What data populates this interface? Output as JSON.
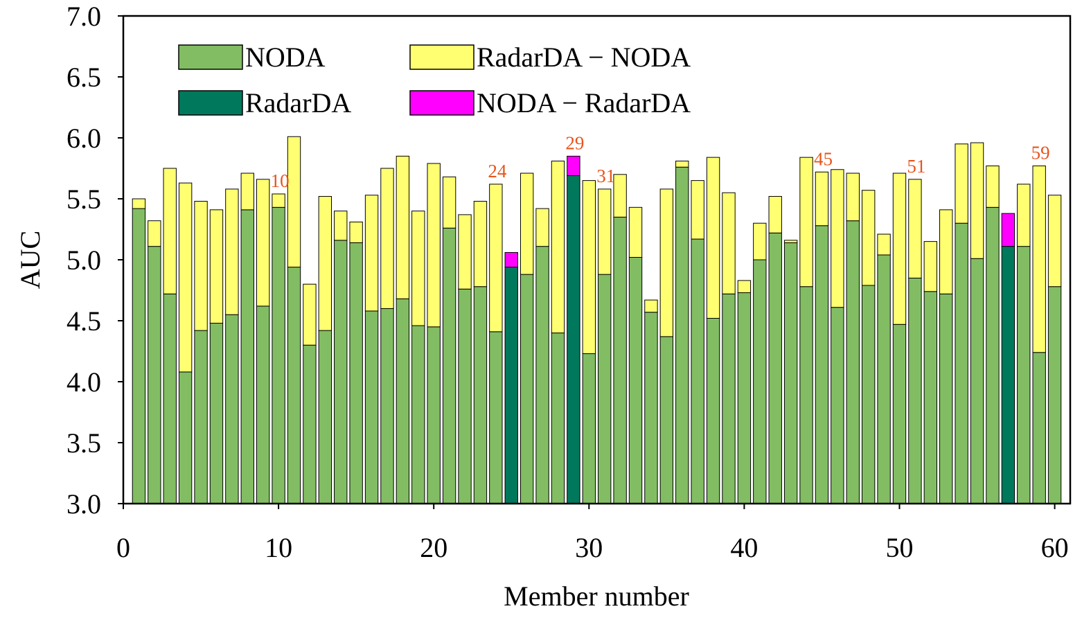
{
  "chart_data": {
    "type": "bar",
    "title": "",
    "xlabel": "Member number",
    "ylabel": "AUC",
    "xlim": [
      0,
      61
    ],
    "ylim": [
      3.0,
      7.0
    ],
    "x_ticks": [
      "0",
      "10",
      "20",
      "30",
      "40",
      "50",
      "60"
    ],
    "y_ticks": [
      "3.0",
      "3.5",
      "4.0",
      "4.5",
      "5.0",
      "5.5",
      "6.0",
      "6.5",
      "7.0"
    ],
    "grid": false,
    "legend_position": "top-left",
    "colors": {
      "noda": "#82bd63",
      "radarda": "#00785c",
      "radarda_minus_noda": "#ffff71",
      "noda_minus_radarda": "#ff00ff"
    },
    "legend": [
      {
        "key": "noda",
        "label": "NODA"
      },
      {
        "key": "radarda_minus_noda",
        "label": "RadarDA − NODA"
      },
      {
        "key": "radarda",
        "label": "RadarDA"
      },
      {
        "key": "noda_minus_radarda",
        "label": "NODA − RadarDA"
      }
    ],
    "members": [
      1,
      2,
      3,
      4,
      5,
      6,
      7,
      8,
      9,
      10,
      11,
      12,
      13,
      14,
      15,
      16,
      17,
      18,
      19,
      20,
      21,
      22,
      23,
      24,
      25,
      26,
      27,
      28,
      29,
      30,
      31,
      32,
      33,
      34,
      35,
      36,
      37,
      38,
      39,
      40,
      41,
      42,
      43,
      44,
      45,
      46,
      47,
      48,
      49,
      50,
      51,
      52,
      53,
      54,
      55,
      56,
      57,
      58,
      59,
      60
    ],
    "series": [
      {
        "name": "NODA",
        "values": [
          5.42,
          5.11,
          4.72,
          4.08,
          4.42,
          4.48,
          4.55,
          5.41,
          4.62,
          5.43,
          4.94,
          4.3,
          4.42,
          5.16,
          5.14,
          4.58,
          4.6,
          4.68,
          4.46,
          4.45,
          5.26,
          4.76,
          4.78,
          4.41,
          5.06,
          4.88,
          5.11,
          4.4,
          5.85,
          4.23,
          4.88,
          5.35,
          5.02,
          4.57,
          4.37,
          5.76,
          5.17,
          4.52,
          4.72,
          4.73,
          5.0,
          5.22,
          5.14,
          4.78,
          5.28,
          4.61,
          5.32,
          4.79,
          5.04,
          4.47,
          4.85,
          4.74,
          4.72,
          5.3,
          5.01,
          5.43,
          5.38,
          5.11,
          4.24,
          4.78
        ]
      },
      {
        "name": "RadarDA",
        "values": [
          5.5,
          5.32,
          5.75,
          5.63,
          5.48,
          5.41,
          5.58,
          5.71,
          5.66,
          5.54,
          6.01,
          4.8,
          5.52,
          5.4,
          5.31,
          5.53,
          5.75,
          5.85,
          5.4,
          5.79,
          5.68,
          5.37,
          5.48,
          5.62,
          4.94,
          5.71,
          5.42,
          5.81,
          5.69,
          5.65,
          5.58,
          5.7,
          5.43,
          4.67,
          5.58,
          5.81,
          5.65,
          5.84,
          5.55,
          4.83,
          5.3,
          5.52,
          5.16,
          5.84,
          5.72,
          5.74,
          5.71,
          5.57,
          5.21,
          5.71,
          5.66,
          5.15,
          5.41,
          5.95,
          5.96,
          5.77,
          5.11,
          5.62,
          5.77,
          5.53
        ]
      }
    ],
    "annotations": [
      {
        "member": 10,
        "label": "10"
      },
      {
        "member": 24,
        "label": "24"
      },
      {
        "member": 29,
        "label": "29"
      },
      {
        "member": 31,
        "label": "31"
      },
      {
        "member": 45,
        "label": "45"
      },
      {
        "member": 51,
        "label": "51"
      },
      {
        "member": 59,
        "label": "59"
      }
    ]
  }
}
